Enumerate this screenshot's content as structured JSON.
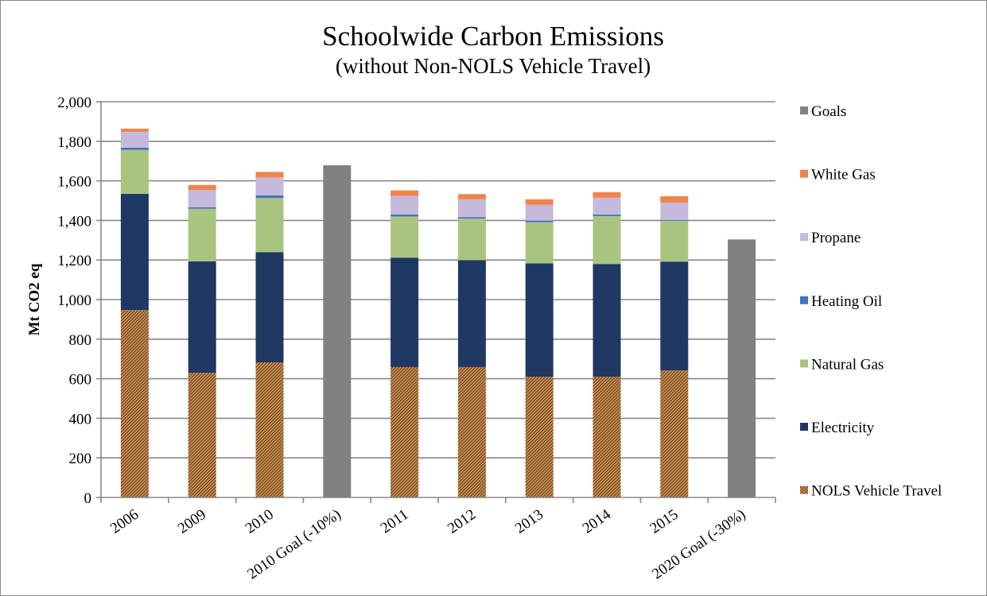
{
  "chart_data": {
    "type": "bar",
    "stacked": true,
    "title": "Schoolwide Carbon Emissions",
    "subtitle": "(without Non-NOLS Vehicle Travel)",
    "xlabel": "",
    "ylabel": "Mt CO2 eq",
    "ylim": [
      0,
      2000
    ],
    "yticks": [
      0,
      200,
      400,
      600,
      800,
      1000,
      1200,
      1400,
      1600,
      1800,
      2000
    ],
    "ytick_labels": [
      "0",
      "200",
      "400",
      "600",
      "800",
      "1,000",
      "1,200",
      "1,400",
      "1,600",
      "1,800",
      "2,000"
    ],
    "grid": true,
    "legend_position": "right",
    "categories": [
      "2006",
      "2009",
      "2010",
      "2010 Goal (-10%)",
      "2011",
      "2012",
      "2013",
      "2014",
      "2015",
      "2020 Goal (-30%)"
    ],
    "series": [
      {
        "name": "NOLS Vehicle Travel",
        "color": "#a0602b",
        "pattern": "diagonal-hatch",
        "values": [
          947,
          630,
          682,
          0,
          659,
          659,
          610,
          610,
          642,
          0
        ]
      },
      {
        "name": "Electricity",
        "color": "#1f3864",
        "values": [
          587,
          563,
          558,
          0,
          553,
          540,
          573,
          570,
          550,
          0
        ]
      },
      {
        "name": "Natural Gas",
        "color": "#a9c47f",
        "values": [
          222,
          266,
          273,
          0,
          208,
          210,
          208,
          242,
          206,
          0
        ]
      },
      {
        "name": "Heating Oil",
        "color": "#4472c4",
        "values": [
          12,
          8,
          14,
          0,
          10,
          8,
          8,
          8,
          4,
          0
        ]
      },
      {
        "name": "Propane",
        "color": "#c5b9dc",
        "values": [
          80,
          87,
          90,
          0,
          94,
          90,
          80,
          85,
          88,
          0
        ]
      },
      {
        "name": "White Gas",
        "color": "#f0844b",
        "values": [
          16,
          25,
          28,
          0,
          28,
          26,
          28,
          28,
          32,
          0
        ]
      },
      {
        "name": "Goals",
        "color": "#808080",
        "values": [
          0,
          0,
          0,
          1679,
          0,
          0,
          0,
          0,
          0,
          1304
        ]
      }
    ]
  }
}
